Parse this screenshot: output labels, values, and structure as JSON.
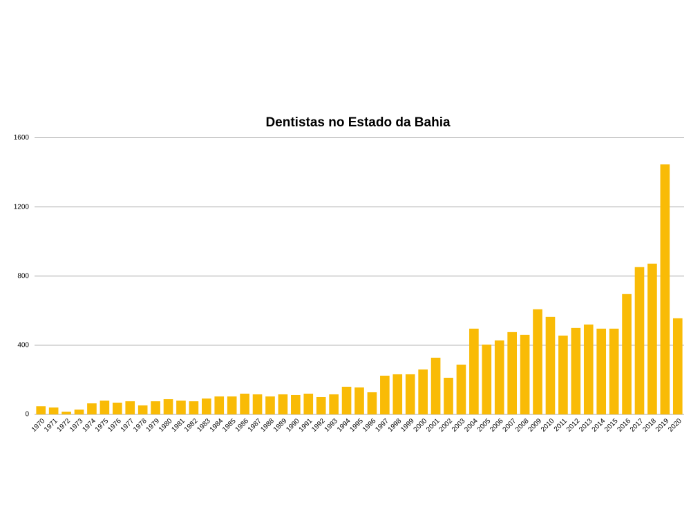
{
  "chart_data": {
    "type": "bar",
    "title": "Dentistas no Estado da Bahia",
    "categories": [
      "1970",
      "1971",
      "1972",
      "1973",
      "1974",
      "1975",
      "1976",
      "1977",
      "1978",
      "1979",
      "1980",
      "1981",
      "1982",
      "1983",
      "1984",
      "1985",
      "1986",
      "1987",
      "1988",
      "1989",
      "1990",
      "1991",
      "1992",
      "1993",
      "1994",
      "1995",
      "1996",
      "1997",
      "1998",
      "1999",
      "2000",
      "2001",
      "2002",
      "2003",
      "2004",
      "2005",
      "2006",
      "2007",
      "2008",
      "2009",
      "2010",
      "2011",
      "2012",
      "2013",
      "2014",
      "2015",
      "2016",
      "2017",
      "2018",
      "2019",
      "2020"
    ],
    "values": [
      47,
      40,
      16,
      28,
      64,
      80,
      68,
      76,
      52,
      76,
      88,
      80,
      76,
      92,
      104,
      104,
      120,
      116,
      104,
      116,
      112,
      120,
      100,
      116,
      160,
      156,
      128,
      224,
      232,
      232,
      260,
      328,
      212,
      288,
      496,
      404,
      428,
      476,
      460,
      608,
      564,
      456,
      500,
      520,
      496,
      496,
      696,
      852,
      872,
      1446,
      556
    ],
    "color": "#f9bb06",
    "ylim": [
      0,
      1600
    ],
    "yticks": [
      0,
      400,
      800,
      1200,
      1600
    ],
    "grid": true
  }
}
